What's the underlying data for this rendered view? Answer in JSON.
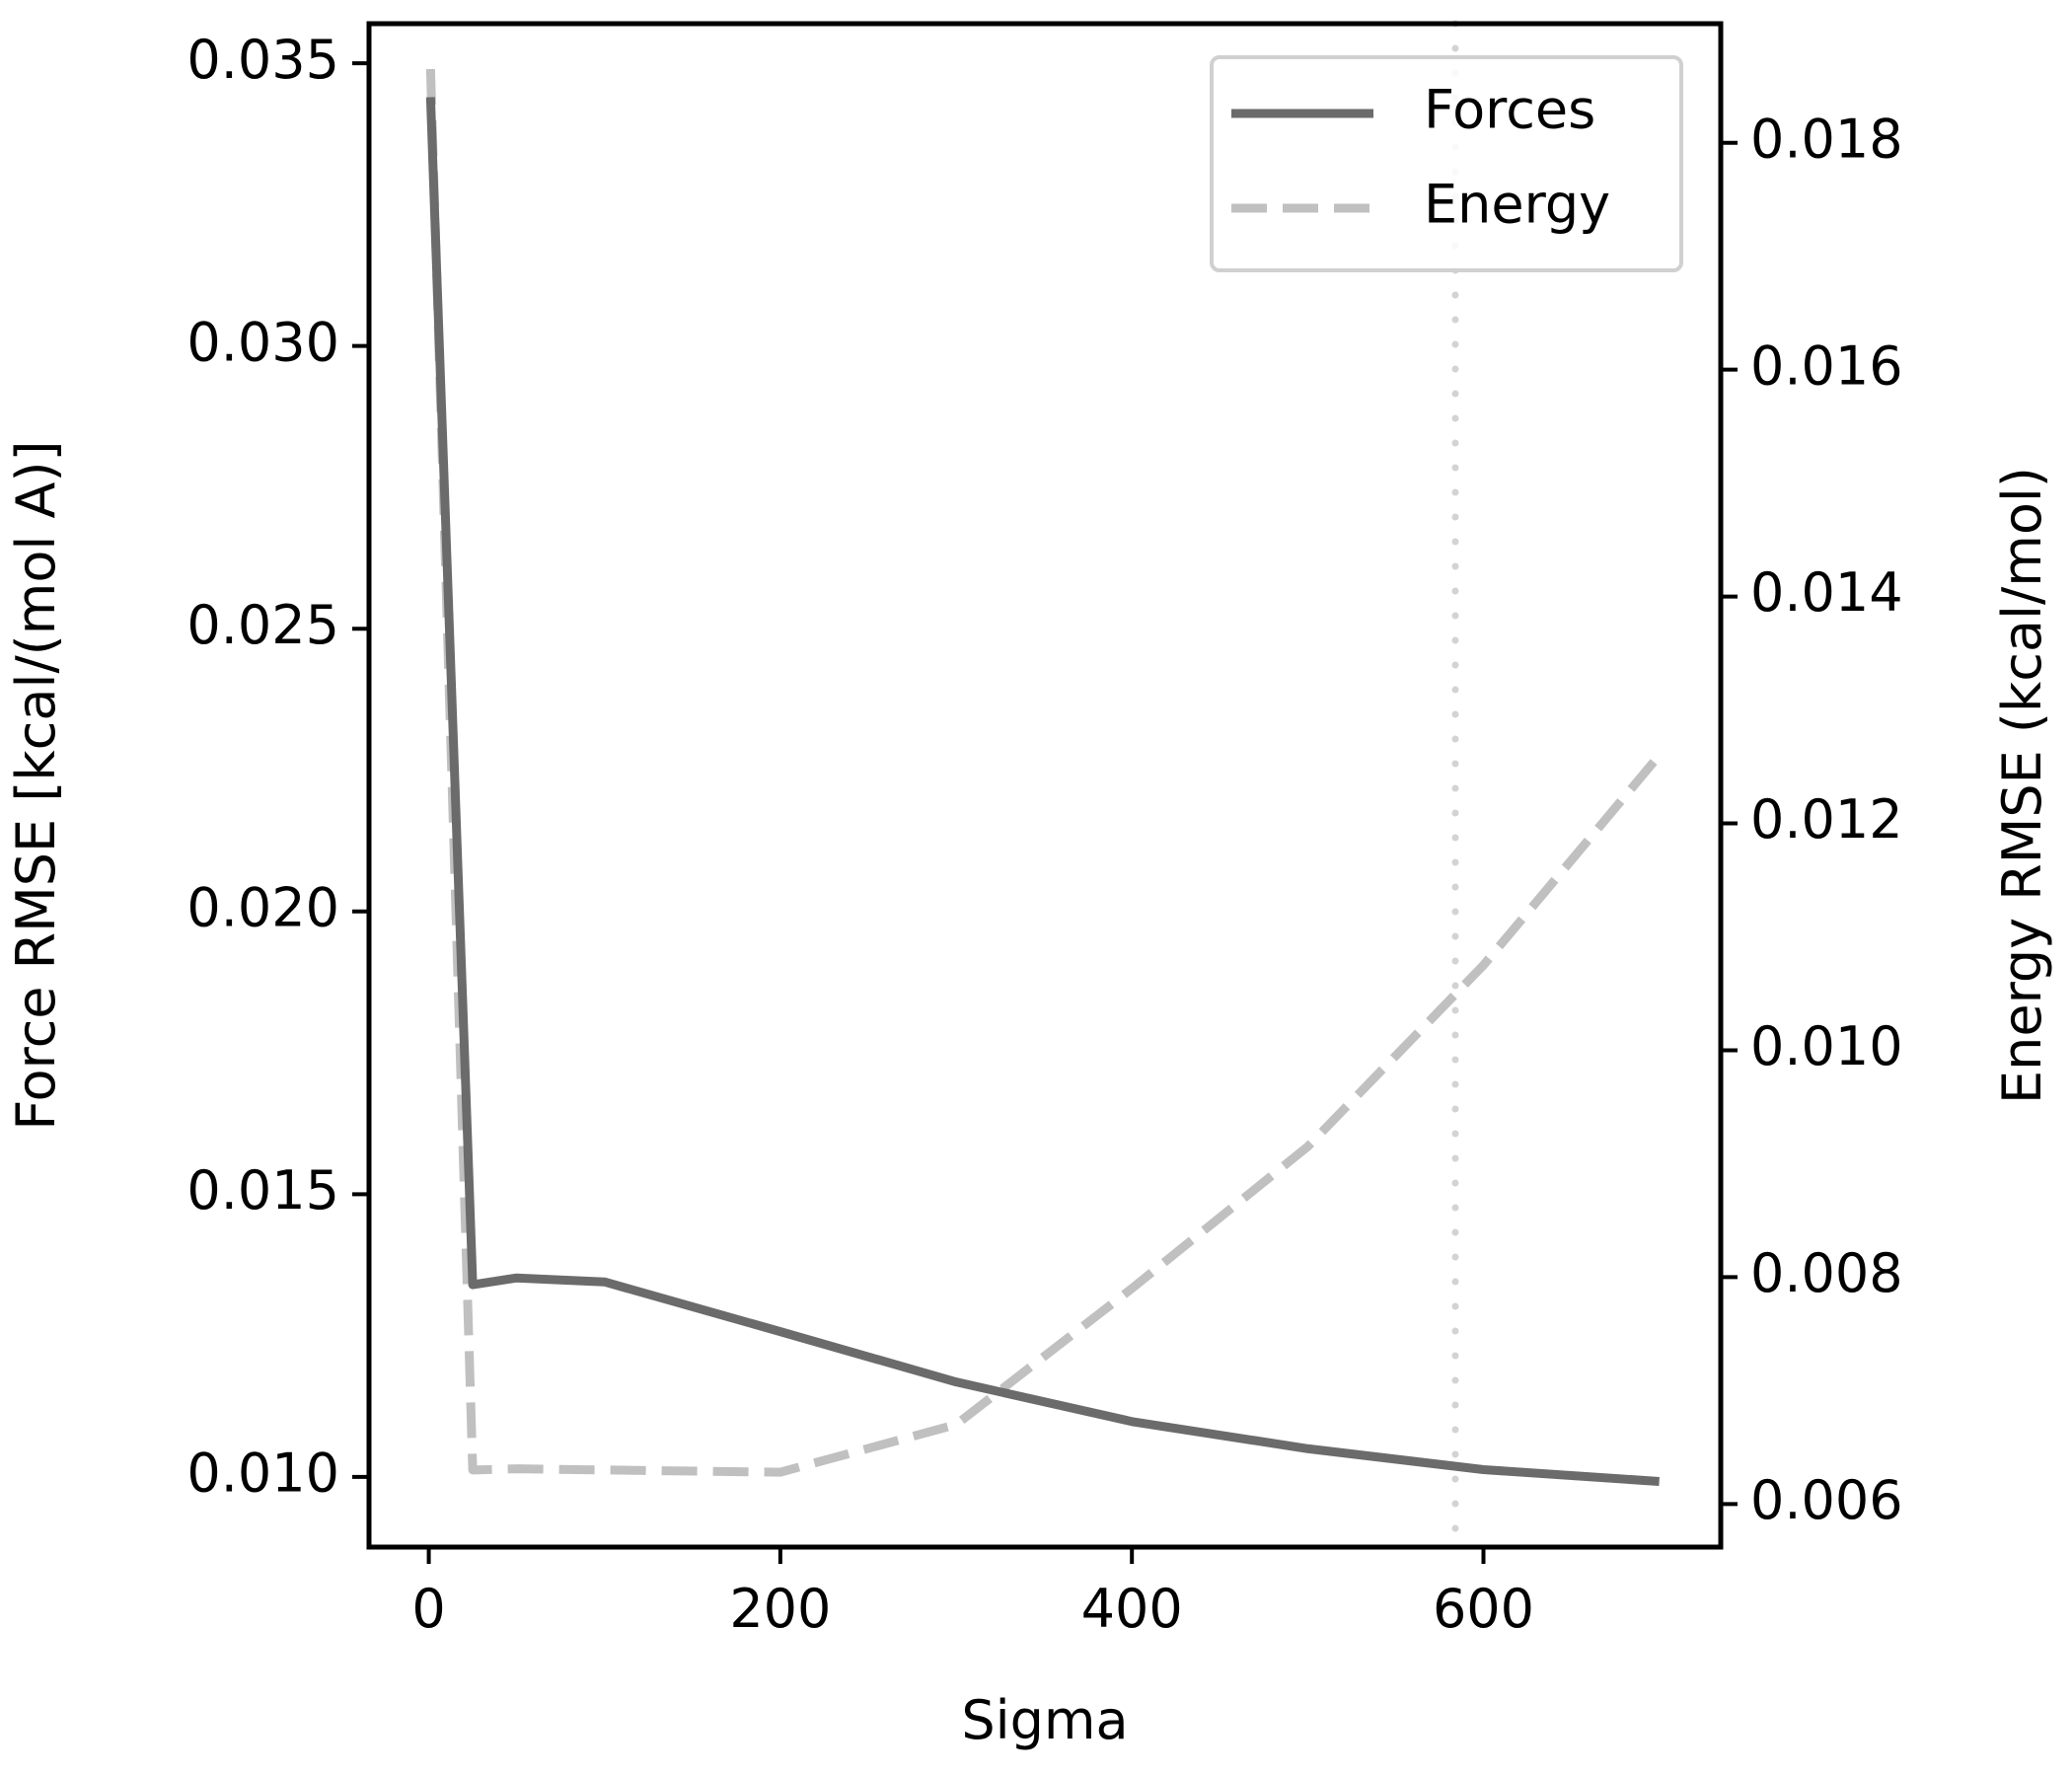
{
  "chart_data": {
    "type": "line",
    "xlabel": "Sigma",
    "ylabel_left": "Force RMSE [kcal/(mol A)]",
    "ylabel_right": "Energy RMSE (kcal/mol)",
    "xlim": [
      -34,
      735
    ],
    "ylim_left": [
      0.00876,
      0.0357
    ],
    "ylim_right": [
      0.00562,
      0.01905
    ],
    "x_ticks": [
      0,
      200,
      400,
      600
    ],
    "x_tick_labels": [
      "0",
      "200",
      "400",
      "600"
    ],
    "y_left_ticks": [
      0.01,
      0.015,
      0.02,
      0.025,
      0.03,
      0.035
    ],
    "y_left_tick_labels": [
      "0.010",
      "0.015",
      "0.020",
      "0.025",
      "0.030",
      "0.035"
    ],
    "y_right_ticks": [
      0.006,
      0.008,
      0.01,
      0.012,
      0.014,
      0.016,
      0.018
    ],
    "y_right_tick_labels": [
      "0.006",
      "0.008",
      "0.010",
      "0.012",
      "0.014",
      "0.016",
      "0.018"
    ],
    "vline": {
      "x": 584,
      "style": "dotted"
    },
    "legend": {
      "position": "top-right",
      "entries": [
        "Forces",
        "Energy"
      ]
    },
    "series": [
      {
        "name": "Forces",
        "axis": "left",
        "style": "solid",
        "color": "#6b6b6b",
        "x": [
          1,
          25,
          50,
          100,
          200,
          300,
          400,
          500,
          600,
          700
        ],
        "values": [
          0.0344,
          0.0134,
          0.01352,
          0.01345,
          0.01257,
          0.01168,
          0.01098,
          0.0105,
          0.01013,
          0.00992
        ]
      },
      {
        "name": "Energy",
        "axis": "right",
        "style": "dashed",
        "color": "#c0c0c0",
        "x": [
          1,
          25,
          50,
          100,
          200,
          300,
          400,
          500,
          600,
          700
        ],
        "values": [
          0.01865,
          0.0063,
          0.00631,
          0.0063,
          0.00628,
          0.0067,
          0.0079,
          0.00915,
          0.01075,
          0.0126
        ]
      }
    ]
  }
}
